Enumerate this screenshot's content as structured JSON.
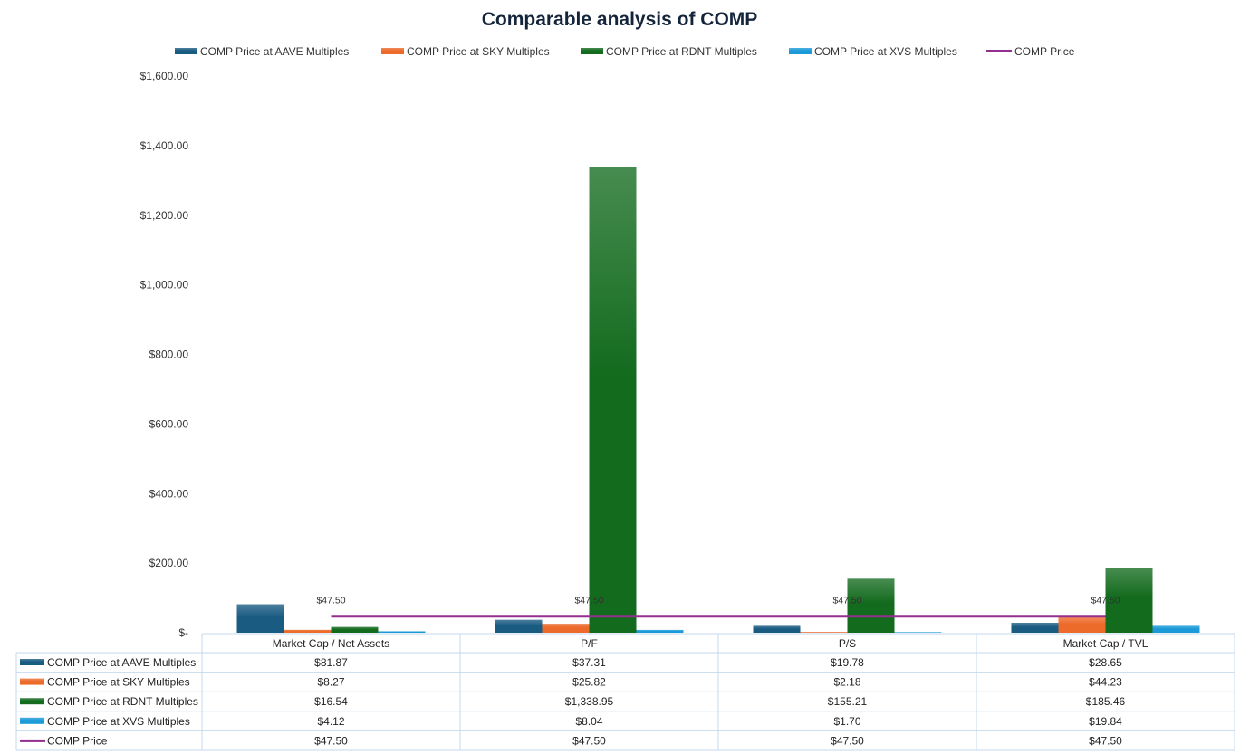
{
  "chart_data": {
    "type": "bar",
    "title": "Comparable analysis of COMP",
    "categories": [
      "Market Cap / Net Assets",
      "P/F",
      "P/S",
      "Market Cap / TVL"
    ],
    "series": [
      {
        "name": "COMP Price at AAVE Multiples",
        "kind": "bar",
        "color": "#1a5b82",
        "values": [
          81.87,
          37.31,
          19.78,
          28.65
        ],
        "labels": [
          "$81.87",
          "$37.31",
          "$19.78",
          "$28.65"
        ]
      },
      {
        "name": "COMP Price at SKY Multiples",
        "kind": "bar",
        "color": "#ec6a2a",
        "values": [
          8.27,
          25.82,
          2.18,
          44.23
        ],
        "labels": [
          "$8.27",
          "$25.82",
          "$2.18",
          "$44.23"
        ]
      },
      {
        "name": "COMP Price at RDNT Multiples",
        "kind": "bar",
        "color": "#136b1e",
        "values": [
          16.54,
          1338.95,
          155.21,
          185.46
        ],
        "labels": [
          "$16.54",
          "$1,338.95",
          "$155.21",
          "$185.46"
        ]
      },
      {
        "name": "COMP Price at XVS Multiples",
        "kind": "bar",
        "color": "#1c9ad8",
        "values": [
          4.12,
          8.04,
          1.7,
          19.84
        ],
        "labels": [
          "$4.12",
          "$8.04",
          "$1.70",
          "$19.84"
        ]
      },
      {
        "name": "COMP Price",
        "kind": "line",
        "color": "#93308f",
        "values": [
          47.5,
          47.5,
          47.5,
          47.5
        ],
        "labels": [
          "$47.50",
          "$47.50",
          "$47.50",
          "$47.50"
        ]
      }
    ],
    "ylim": [
      0,
      1600
    ],
    "yticks": [
      0,
      200,
      400,
      600,
      800,
      1000,
      1200,
      1400,
      1600
    ],
    "ytick_labels": [
      "$-",
      "$200.00",
      "$400.00",
      "$600.00",
      "$800.00",
      "$1,000.00",
      "$1,200.00",
      "$1,400.00",
      "$1,600.00"
    ],
    "legend": "top",
    "grid": false,
    "data_table": true
  }
}
